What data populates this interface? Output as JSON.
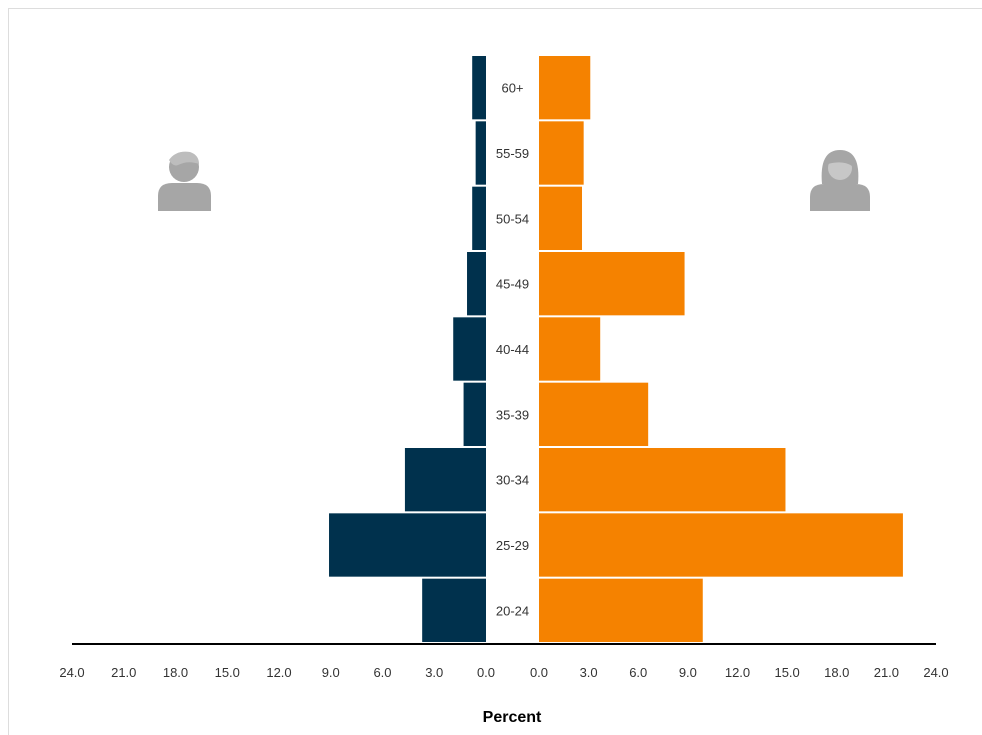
{
  "chart_data": {
    "type": "bar",
    "orientation": "horizontal-pyramid",
    "xlabel": "Percent",
    "categories": [
      "20-24",
      "25-29",
      "30-34",
      "35-39",
      "40-44",
      "45-49",
      "50-54",
      "55-59",
      "60+"
    ],
    "series": [
      {
        "values": [
          3.7,
          9.1,
          4.7,
          1.3,
          1.9,
          1.1,
          0.8,
          0.6,
          0.8
        ]
      },
      {
        "values": [
          9.9,
          22.0,
          14.9,
          6.6,
          3.7,
          8.8,
          2.6,
          2.7,
          3.1
        ]
      }
    ],
    "xlim": [
      0,
      24
    ],
    "left_ticks": [
      "24.0",
      "21.0",
      "18.0",
      "15.0",
      "12.0",
      "9.0",
      "6.0",
      "3.0",
      "0.0"
    ],
    "right_ticks": [
      "0.0",
      "3.0",
      "6.0",
      "9.0",
      "12.0",
      "15.0",
      "18.0",
      "21.0",
      "24.0"
    ],
    "grid": false,
    "colors": {
      "male": "#00314d",
      "female": "#f58200",
      "icon": "#a6a6a6",
      "axis": "#000000"
    },
    "icons": {
      "left": "male-person-icon",
      "right": "female-person-icon"
    }
  }
}
